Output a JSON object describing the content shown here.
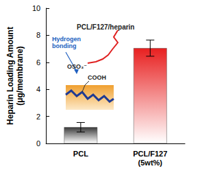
{
  "chart_data": {
    "type": "bar",
    "categories": [
      "PCL",
      "PCL/F127\n(5wt%)"
    ],
    "values": [
      1.2,
      7.05
    ],
    "errors": [
      0.35,
      0.6
    ],
    "colors": [
      "#3a3a3a",
      "#e82020"
    ],
    "y_label": "Heparin Loading Amount\n(μg/membrane)",
    "ylim": [
      0,
      10
    ],
    "yticks": [
      0,
      2,
      4,
      6,
      8,
      10
    ],
    "grid": false,
    "annotations": [
      "PCL/F127/heparin",
      "Hydrogen\nbonding",
      "OSO₃⁻",
      "COOH"
    ]
  }
}
